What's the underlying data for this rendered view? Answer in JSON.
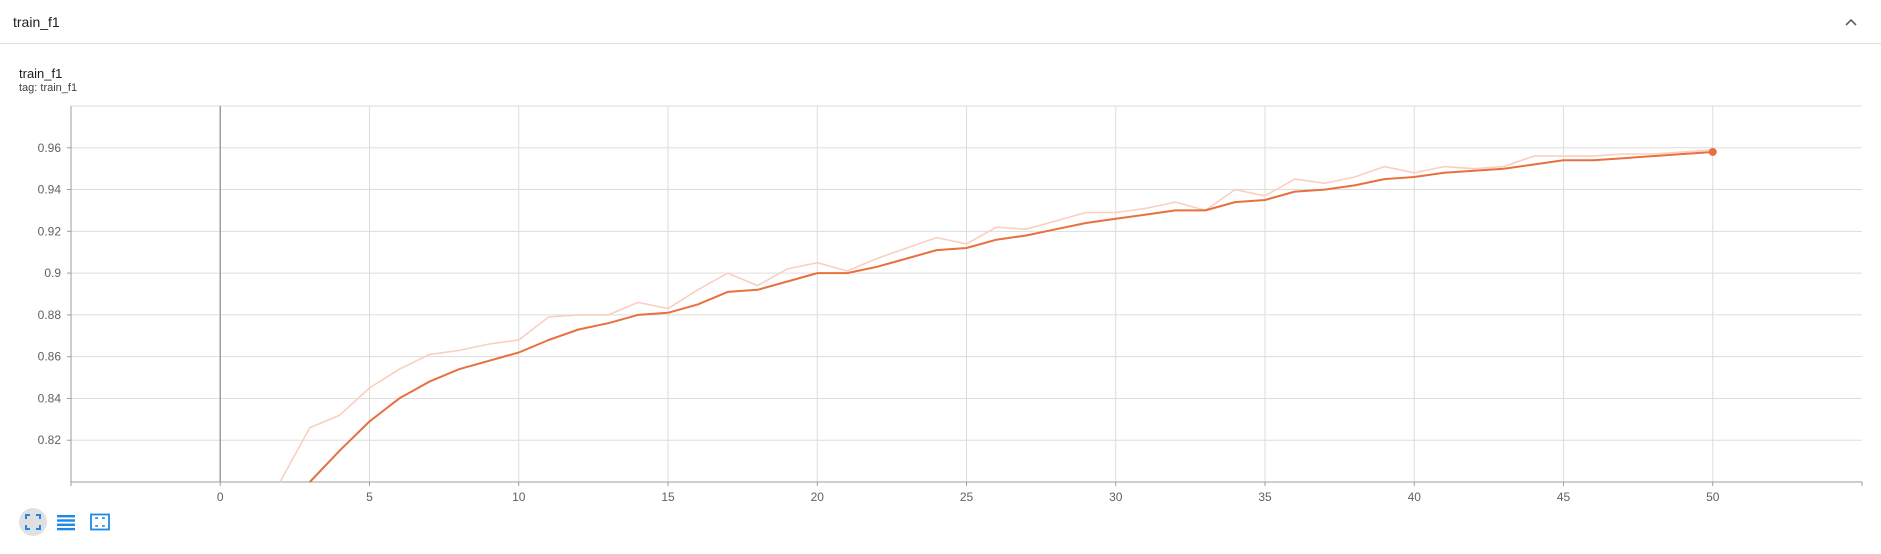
{
  "header": {
    "title": "train_f1",
    "collapse_icon": "chevron-up-icon"
  },
  "card": {
    "title": "train_f1",
    "tag": "tag: train_f1"
  },
  "toolbar": {
    "buttons": [
      {
        "name": "fullscreen",
        "icon": "fit-fullscreen-icon"
      },
      {
        "name": "log-scale-toggle",
        "icon": "list-lines-icon"
      },
      {
        "name": "fit-domain",
        "icon": "fit-domain-icon"
      }
    ]
  },
  "colors": {
    "series": "#e8703f",
    "raw": "#f9cfc0",
    "grid": "#dddddd",
    "axis": "#9e9e9e"
  },
  "chart_data": {
    "type": "line",
    "title": "train_f1",
    "xlabel": "",
    "ylabel": "",
    "xlim": [
      -5,
      55
    ],
    "ylim": [
      0.8,
      0.98
    ],
    "xticks": [
      0,
      5,
      10,
      15,
      20,
      25,
      30,
      35,
      40,
      45,
      50
    ],
    "yticks": [
      0.82,
      0.84,
      0.86,
      0.88,
      0.9,
      0.92,
      0.94,
      0.96
    ],
    "ytick_labels": [
      "0.82",
      "0.84",
      "0.86",
      "0.88",
      "0.9",
      "0.92",
      "0.94",
      "0.96"
    ],
    "grid": true,
    "series": [
      {
        "role": "smoothed",
        "x": [
          3,
          4,
          5,
          6,
          7,
          8,
          9,
          10,
          11,
          12,
          13,
          14,
          15,
          16,
          17,
          18,
          19,
          20,
          21,
          22,
          23,
          24,
          25,
          26,
          27,
          28,
          29,
          30,
          31,
          32,
          33,
          34,
          35,
          36,
          37,
          38,
          39,
          40,
          41,
          42,
          43,
          44,
          45,
          46,
          47,
          48,
          49,
          50
        ],
        "y": [
          0.8,
          0.815,
          0.829,
          0.84,
          0.848,
          0.854,
          0.858,
          0.862,
          0.868,
          0.873,
          0.876,
          0.88,
          0.881,
          0.885,
          0.891,
          0.892,
          0.896,
          0.9,
          0.9,
          0.903,
          0.907,
          0.911,
          0.912,
          0.916,
          0.918,
          0.921,
          0.924,
          0.926,
          0.928,
          0.93,
          0.93,
          0.934,
          0.935,
          0.939,
          0.94,
          0.942,
          0.945,
          0.946,
          0.948,
          0.949,
          0.95,
          0.952,
          0.954,
          0.954,
          0.955,
          0.956,
          0.957,
          0.958
        ]
      },
      {
        "role": "raw",
        "x": [
          2,
          3,
          4,
          5,
          6,
          7,
          8,
          9,
          10,
          11,
          12,
          13,
          14,
          15,
          16,
          17,
          18,
          19,
          20,
          21,
          22,
          23,
          24,
          25,
          26,
          27,
          28,
          29,
          30,
          31,
          32,
          33,
          34,
          35,
          36,
          37,
          38,
          39,
          40,
          41,
          42,
          43,
          44,
          45,
          46,
          47,
          48,
          49,
          50
        ],
        "y": [
          0.8,
          0.826,
          0.832,
          0.845,
          0.854,
          0.861,
          0.863,
          0.866,
          0.868,
          0.879,
          0.88,
          0.88,
          0.886,
          0.883,
          0.892,
          0.9,
          0.894,
          0.902,
          0.905,
          0.901,
          0.907,
          0.912,
          0.917,
          0.914,
          0.922,
          0.921,
          0.925,
          0.929,
          0.929,
          0.931,
          0.934,
          0.93,
          0.94,
          0.937,
          0.945,
          0.943,
          0.946,
          0.951,
          0.948,
          0.951,
          0.95,
          0.951,
          0.956,
          0.956,
          0.956,
          0.957,
          0.957,
          0.958,
          0.959
        ]
      }
    ]
  }
}
